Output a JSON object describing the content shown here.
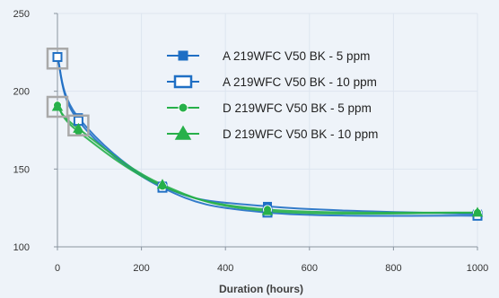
{
  "chart_data": {
    "type": "line",
    "title": "",
    "xlabel": "Duration  (hours)",
    "ylabel": "",
    "xlim": [
      0,
      1000
    ],
    "ylim": [
      100,
      250
    ],
    "x_ticks": [
      0,
      200,
      400,
      600,
      800,
      1000
    ],
    "y_ticks": [
      100,
      150,
      200,
      250
    ],
    "grid": "vertical and horizontal light gridlines",
    "legend_placement": "top-center",
    "series": [
      {
        "name": "A 219WFC V50 BK - 5 ppm",
        "marker": "square",
        "marker_fill": "solid",
        "color": "#1f6fc4",
        "x": [
          0,
          50,
          250,
          500,
          1000
        ],
        "y": [
          222,
          183,
          139,
          126,
          121
        ]
      },
      {
        "name": "A 219WFC V50 BK - 10 ppm",
        "marker": "square",
        "marker_fill": "open",
        "color": "#1f6fc4",
        "x": [
          0,
          50,
          250,
          500,
          1000
        ],
        "y": [
          222,
          181,
          138,
          122,
          120
        ]
      },
      {
        "name": "D 219WFC V50 BK - 5 ppm",
        "marker": "circle",
        "marker_fill": "solid",
        "color": "#27b04a",
        "x": [
          0,
          50,
          250,
          500,
          1000
        ],
        "y": [
          191,
          174,
          139,
          124,
          122
        ]
      },
      {
        "name": "D 219WFC V50 BK - 10 ppm",
        "marker": "triangle",
        "marker_fill": "solid",
        "color": "#27b04a",
        "x": [
          0,
          50,
          250,
          500,
          1000
        ],
        "y": [
          190,
          176,
          140,
          123,
          122
        ]
      }
    ],
    "highlight_boxes": [
      {
        "x": 0,
        "y": 221
      },
      {
        "x": 0,
        "y": 190
      },
      {
        "x": 50,
        "y": 178
      }
    ]
  }
}
